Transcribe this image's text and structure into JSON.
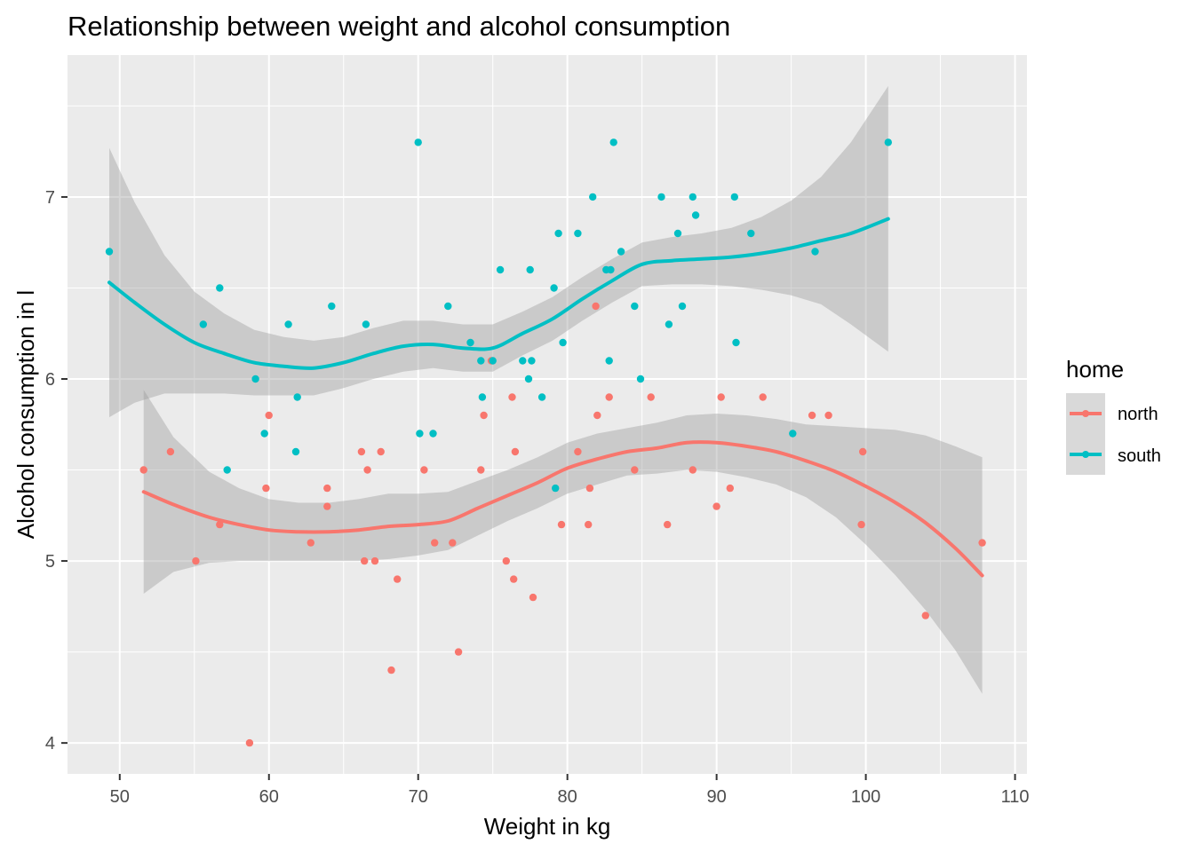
{
  "chart_data": {
    "type": "scatter",
    "title": "Relationship between weight and alcohol consumption",
    "xlabel": "Weight in kg",
    "ylabel": "Alcohol consumption in l",
    "xlim": [
      46.5,
      110.8
    ],
    "ylim": [
      3.83,
      7.78
    ],
    "x_ticks": [
      50,
      60,
      70,
      80,
      90,
      100,
      110
    ],
    "x_tick_labels": [
      "50",
      "60",
      "70",
      "80",
      "90",
      "100",
      "110"
    ],
    "y_ticks": [
      4,
      5,
      6,
      7
    ],
    "y_tick_labels": [
      "4",
      "5",
      "6",
      "7"
    ],
    "grid": true,
    "legend": {
      "title": "home",
      "position": "right",
      "entries": [
        "north",
        "south"
      ]
    },
    "series": [
      {
        "name": "north",
        "color": "#F8766D",
        "points": [
          [
            51.6,
            5.5
          ],
          [
            53.4,
            5.6
          ],
          [
            55.1,
            5.0
          ],
          [
            56.7,
            5.2
          ],
          [
            58.7,
            4.0
          ],
          [
            59.8,
            5.4
          ],
          [
            60.0,
            5.8
          ],
          [
            62.8,
            5.1
          ],
          [
            63.9,
            5.4
          ],
          [
            63.9,
            5.3
          ],
          [
            66.2,
            5.6
          ],
          [
            66.4,
            5.0
          ],
          [
            66.6,
            5.5
          ],
          [
            67.1,
            5.0
          ],
          [
            67.5,
            5.6
          ],
          [
            68.2,
            4.4
          ],
          [
            68.6,
            4.9
          ],
          [
            70.4,
            5.5
          ],
          [
            71.1,
            5.1
          ],
          [
            72.3,
            5.1
          ],
          [
            72.7,
            4.5
          ],
          [
            74.2,
            5.5
          ],
          [
            74.4,
            5.8
          ],
          [
            74.9,
            6.1
          ],
          [
            75.9,
            5.0
          ],
          [
            76.3,
            5.9
          ],
          [
            76.4,
            4.9
          ],
          [
            76.5,
            5.6
          ],
          [
            77.7,
            4.8
          ],
          [
            79.6,
            5.2
          ],
          [
            80.7,
            5.6
          ],
          [
            81.4,
            5.2
          ],
          [
            81.5,
            5.4
          ],
          [
            81.9,
            6.4
          ],
          [
            82.0,
            5.8
          ],
          [
            82.8,
            5.9
          ],
          [
            84.5,
            5.5
          ],
          [
            85.6,
            5.9
          ],
          [
            86.7,
            5.2
          ],
          [
            88.4,
            5.5
          ],
          [
            90.0,
            5.3
          ],
          [
            90.3,
            5.9
          ],
          [
            90.9,
            5.4
          ],
          [
            93.1,
            5.9
          ],
          [
            96.4,
            5.8
          ],
          [
            97.5,
            5.8
          ],
          [
            99.7,
            5.2
          ],
          [
            99.8,
            5.6
          ],
          [
            104.0,
            4.7
          ],
          [
            107.8,
            5.1
          ]
        ],
        "smooth": {
          "x": [
            51.6,
            53.6,
            56.0,
            58.0,
            60.0,
            62.0,
            64.0,
            66.0,
            68.0,
            70.0,
            72.0,
            74.0,
            76.0,
            78.0,
            80.0,
            82.0,
            84.0,
            86.0,
            88.0,
            90.0,
            92.0,
            94.0,
            96.0,
            98.0,
            100.0,
            102.0,
            104.0,
            106.0,
            107.8
          ],
          "y": [
            5.38,
            5.31,
            5.24,
            5.2,
            5.17,
            5.16,
            5.16,
            5.17,
            5.19,
            5.2,
            5.22,
            5.29,
            5.36,
            5.43,
            5.51,
            5.56,
            5.6,
            5.62,
            5.65,
            5.65,
            5.63,
            5.6,
            5.55,
            5.49,
            5.41,
            5.32,
            5.21,
            5.07,
            4.92
          ],
          "se": [
            0.56,
            0.37,
            0.25,
            0.2,
            0.17,
            0.16,
            0.16,
            0.17,
            0.18,
            0.17,
            0.16,
            0.15,
            0.14,
            0.14,
            0.14,
            0.14,
            0.13,
            0.14,
            0.15,
            0.16,
            0.17,
            0.18,
            0.2,
            0.25,
            0.32,
            0.4,
            0.48,
            0.56,
            0.65
          ]
        }
      },
      {
        "name": "south",
        "color": "#00BFC4",
        "points": [
          [
            49.3,
            6.7
          ],
          [
            55.6,
            6.3
          ],
          [
            56.7,
            6.5
          ],
          [
            57.2,
            5.5
          ],
          [
            59.1,
            6.0
          ],
          [
            59.7,
            5.7
          ],
          [
            61.3,
            6.3
          ],
          [
            61.8,
            5.6
          ],
          [
            61.9,
            5.9
          ],
          [
            64.2,
            6.4
          ],
          [
            66.5,
            6.3
          ],
          [
            70.0,
            7.3
          ],
          [
            70.1,
            5.7
          ],
          [
            71.0,
            5.7
          ],
          [
            72.0,
            6.4
          ],
          [
            73.5,
            6.2
          ],
          [
            74.2,
            6.1
          ],
          [
            74.3,
            5.9
          ],
          [
            75.0,
            6.1
          ],
          [
            75.5,
            6.6
          ],
          [
            77.0,
            6.1
          ],
          [
            77.4,
            6.0
          ],
          [
            77.5,
            6.6
          ],
          [
            77.6,
            6.1
          ],
          [
            78.3,
            5.9
          ],
          [
            79.1,
            6.5
          ],
          [
            79.2,
            5.4
          ],
          [
            79.4,
            6.8
          ],
          [
            79.7,
            6.2
          ],
          [
            80.7,
            6.8
          ],
          [
            81.7,
            7.0
          ],
          [
            82.6,
            6.6
          ],
          [
            82.8,
            6.1
          ],
          [
            82.9,
            6.6
          ],
          [
            83.1,
            7.3
          ],
          [
            83.6,
            6.7
          ],
          [
            84.5,
            6.4
          ],
          [
            84.9,
            6.0
          ],
          [
            86.3,
            7.0
          ],
          [
            86.8,
            6.3
          ],
          [
            87.4,
            6.8
          ],
          [
            87.7,
            6.4
          ],
          [
            88.4,
            7.0
          ],
          [
            88.6,
            6.9
          ],
          [
            91.2,
            7.0
          ],
          [
            91.3,
            6.2
          ],
          [
            92.3,
            6.8
          ],
          [
            95.1,
            5.7
          ],
          [
            96.6,
            6.7
          ],
          [
            101.5,
            7.3
          ]
        ],
        "smooth": {
          "x": [
            49.3,
            51.0,
            53.0,
            55.0,
            57.0,
            59.0,
            61.0,
            63.0,
            65.0,
            67.0,
            69.0,
            71.0,
            73.0,
            75.0,
            77.0,
            79.0,
            81.0,
            83.0,
            85.0,
            87.0,
            89.0,
            91.0,
            93.0,
            95.0,
            97.0,
            99.0,
            101.5
          ],
          "y": [
            6.53,
            6.42,
            6.3,
            6.2,
            6.14,
            6.09,
            6.07,
            6.06,
            6.09,
            6.14,
            6.18,
            6.19,
            6.17,
            6.17,
            6.25,
            6.33,
            6.44,
            6.54,
            6.63,
            6.65,
            6.66,
            6.67,
            6.69,
            6.72,
            6.76,
            6.8,
            6.88
          ],
          "se": [
            0.74,
            0.55,
            0.38,
            0.28,
            0.22,
            0.18,
            0.16,
            0.15,
            0.14,
            0.14,
            0.14,
            0.13,
            0.13,
            0.13,
            0.12,
            0.12,
            0.12,
            0.12,
            0.12,
            0.13,
            0.14,
            0.16,
            0.2,
            0.26,
            0.35,
            0.5,
            0.73
          ]
        }
      }
    ]
  }
}
